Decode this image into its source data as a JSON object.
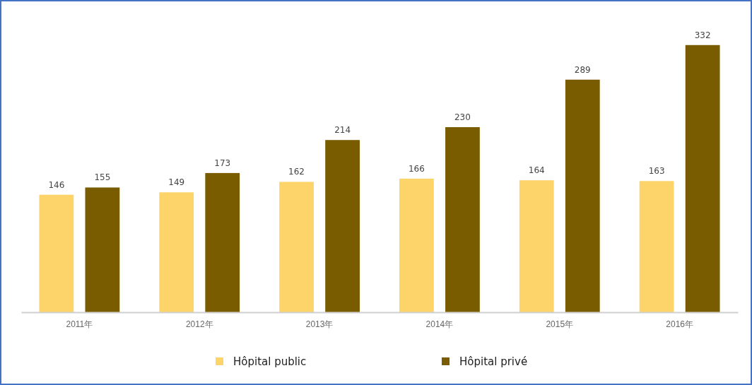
{
  "chart_data": {
    "type": "bar",
    "categories": [
      "2011年",
      "2012年",
      "2013年",
      "2014年",
      "2015年",
      "2016年"
    ],
    "series": [
      {
        "name": "Hôpital public",
        "color": "#fdd46a",
        "values": [
          146,
          149,
          162,
          166,
          164,
          163
        ]
      },
      {
        "name": "Hôpital privé",
        "color": "#7a5c00",
        "values": [
          155,
          173,
          214,
          230,
          289,
          332
        ]
      }
    ],
    "data_labels": true,
    "legend": "bottom",
    "grid": false
  }
}
